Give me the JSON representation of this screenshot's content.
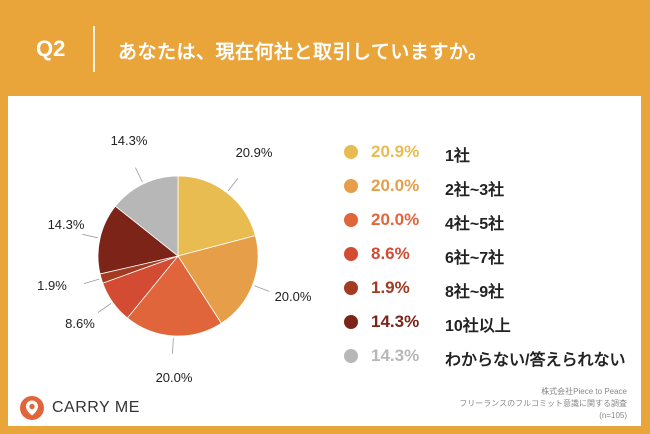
{
  "header": {
    "question": "Q2",
    "title": "あなたは、現在何社と取引していますか。"
  },
  "chart_data": {
    "type": "pie",
    "slices": [
      {
        "label": "1社",
        "value": 20.9,
        "display": "20.9%",
        "color": "#E9BC52"
      },
      {
        "label": "2社~3社",
        "value": 20.0,
        "display": "20.0%",
        "color": "#E69E48"
      },
      {
        "label": "4社~5社",
        "value": 20.0,
        "display": "20.0%",
        "color": "#E0653A"
      },
      {
        "label": "6社~7社",
        "value": 8.6,
        "display": "8.6%",
        "color": "#D44B33"
      },
      {
        "label": "8社~9社",
        "value": 1.9,
        "display": "1.9%",
        "color": "#A23B22"
      },
      {
        "label": "10社以上",
        "value": 14.3,
        "display": "14.3%",
        "color": "#7C2417"
      },
      {
        "label": "わからない/答えられない",
        "value": 14.3,
        "display": "14.3%",
        "color": "#B7B7B7"
      }
    ]
  },
  "logo": {
    "text": "CARRY ME",
    "icon": "carry-me-logo-icon",
    "color": "#E0653A"
  },
  "source": {
    "company": "株式会社Piece to Peace",
    "survey": "フリーランスのフルコミット意識に関する調査",
    "sample": "(n=105)"
  }
}
